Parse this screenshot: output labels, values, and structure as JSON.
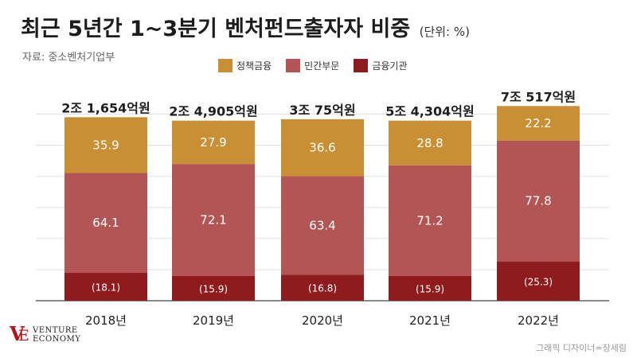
{
  "header": {
    "title": "최근 5년간 1~3분기 벤처펀드출자자 비중",
    "unit": "(단위: %)",
    "source": "자료: 중소벤처기업부"
  },
  "legend": [
    {
      "label": "정책금융",
      "color": "#c98f34"
    },
    {
      "label": "민간부문",
      "color": "#b35555"
    },
    {
      "label": "금융기관",
      "color": "#8e1c1f"
    }
  ],
  "chart_data": {
    "type": "bar",
    "stacked": true,
    "categories": [
      "2018년",
      "2019년",
      "2020년",
      "2021년",
      "2022년"
    ],
    "totals": [
      "2조 1,654억원",
      "2조 4,905억원",
      "3조 75억원",
      "5조 4,304억원",
      "7조 517억원"
    ],
    "series": [
      {
        "name": "금융기관",
        "values": [
          18.1,
          15.9,
          16.8,
          15.9,
          25.3
        ],
        "labels": [
          "(18.1)",
          "(15.9)",
          "(16.8)",
          "(15.9)",
          "(25.3)"
        ],
        "color": "#8e1c1f"
      },
      {
        "name": "민간부문",
        "values": [
          64.1,
          72.1,
          63.4,
          71.2,
          77.8
        ],
        "labels": [
          "64.1",
          "72.1",
          "63.4",
          "71.2",
          "77.8"
        ],
        "color": "#b35555"
      },
      {
        "name": "정책금융",
        "values": [
          35.9,
          27.9,
          36.6,
          28.8,
          22.2
        ],
        "labels": [
          "35.9",
          "27.9",
          "36.6",
          "28.8",
          "22.2"
        ],
        "color": "#c98f34"
      }
    ],
    "ylim": [
      0,
      132
    ],
    "grid": true,
    "legend_position": "top"
  },
  "branding": {
    "logo_line1": "VENTURE",
    "logo_line2": "ECONOMY",
    "credit": "그래픽 디자이너=장세림"
  }
}
